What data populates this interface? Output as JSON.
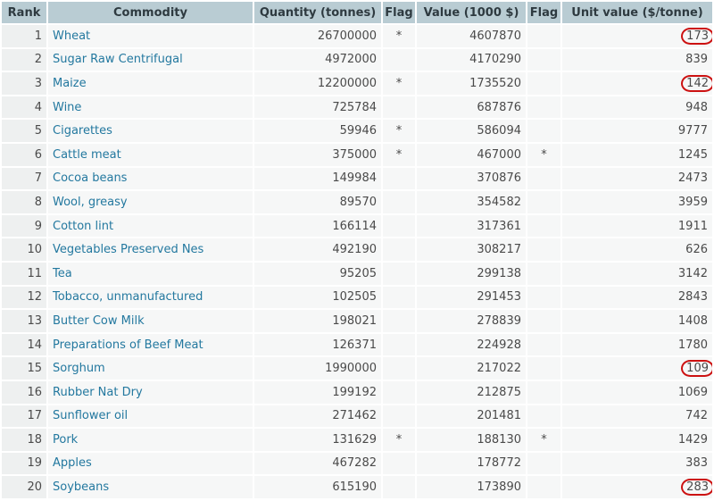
{
  "colors": {
    "page_bg": "#ffffff",
    "header_bg": "#b9ccd3",
    "header_text": "#2e3a40",
    "cell_bg": "#f6f7f7",
    "rank_cell_bg": "#eef0f0",
    "number_text": "#4a4a4a",
    "link_color": "#23789f",
    "annotation_red": "#cc1111"
  },
  "table": {
    "columns": [
      {
        "label": "Rank"
      },
      {
        "label": "Commodity"
      },
      {
        "label": "Quantity (tonnes)"
      },
      {
        "label": "Flag"
      },
      {
        "label": "Value (1000 $)"
      },
      {
        "label": "Flag"
      },
      {
        "label": "Unit value ($/tonne)"
      }
    ],
    "rows": [
      {
        "rank": "1",
        "commodity": "Wheat",
        "quantity": "26700000",
        "flag1": "*",
        "value": "4607870",
        "flag2": "",
        "unit": "173",
        "circled": true
      },
      {
        "rank": "2",
        "commodity": "Sugar Raw Centrifugal",
        "quantity": "4972000",
        "flag1": "",
        "value": "4170290",
        "flag2": "",
        "unit": "839",
        "circled": false
      },
      {
        "rank": "3",
        "commodity": "Maize",
        "quantity": "12200000",
        "flag1": "*",
        "value": "1735520",
        "flag2": "",
        "unit": "142",
        "circled": true
      },
      {
        "rank": "4",
        "commodity": "Wine",
        "quantity": "725784",
        "flag1": "",
        "value": "687876",
        "flag2": "",
        "unit": "948",
        "circled": false
      },
      {
        "rank": "5",
        "commodity": "Cigarettes",
        "quantity": "59946",
        "flag1": "*",
        "value": "586094",
        "flag2": "",
        "unit": "9777",
        "circled": false
      },
      {
        "rank": "6",
        "commodity": "Cattle meat",
        "quantity": "375000",
        "flag1": "*",
        "value": "467000",
        "flag2": "*",
        "unit": "1245",
        "circled": false
      },
      {
        "rank": "7",
        "commodity": "Cocoa beans",
        "quantity": "149984",
        "flag1": "",
        "value": "370876",
        "flag2": "",
        "unit": "2473",
        "circled": false
      },
      {
        "rank": "8",
        "commodity": "Wool, greasy",
        "quantity": "89570",
        "flag1": "",
        "value": "354582",
        "flag2": "",
        "unit": "3959",
        "circled": false
      },
      {
        "rank": "9",
        "commodity": "Cotton lint",
        "quantity": "166114",
        "flag1": "",
        "value": "317361",
        "flag2": "",
        "unit": "1911",
        "circled": false
      },
      {
        "rank": "10",
        "commodity": "Vegetables Preserved Nes",
        "quantity": "492190",
        "flag1": "",
        "value": "308217",
        "flag2": "",
        "unit": "626",
        "circled": false
      },
      {
        "rank": "11",
        "commodity": "Tea",
        "quantity": "95205",
        "flag1": "",
        "value": "299138",
        "flag2": "",
        "unit": "3142",
        "circled": false
      },
      {
        "rank": "12",
        "commodity": "Tobacco, unmanufactured",
        "quantity": "102505",
        "flag1": "",
        "value": "291453",
        "flag2": "",
        "unit": "2843",
        "circled": false
      },
      {
        "rank": "13",
        "commodity": "Butter Cow Milk",
        "quantity": "198021",
        "flag1": "",
        "value": "278839",
        "flag2": "",
        "unit": "1408",
        "circled": false
      },
      {
        "rank": "14",
        "commodity": "Preparations of Beef Meat",
        "quantity": "126371",
        "flag1": "",
        "value": "224928",
        "flag2": "",
        "unit": "1780",
        "circled": false
      },
      {
        "rank": "15",
        "commodity": "Sorghum",
        "quantity": "1990000",
        "flag1": "",
        "value": "217022",
        "flag2": "",
        "unit": "109",
        "circled": true
      },
      {
        "rank": "16",
        "commodity": "Rubber Nat Dry",
        "quantity": "199192",
        "flag1": "",
        "value": "212875",
        "flag2": "",
        "unit": "1069",
        "circled": false
      },
      {
        "rank": "17",
        "commodity": "Sunflower oil",
        "quantity": "271462",
        "flag1": "",
        "value": "201481",
        "flag2": "",
        "unit": "742",
        "circled": false
      },
      {
        "rank": "18",
        "commodity": "Pork",
        "quantity": "131629",
        "flag1": "*",
        "value": "188130",
        "flag2": "*",
        "unit": "1429",
        "circled": false
      },
      {
        "rank": "19",
        "commodity": "Apples",
        "quantity": "467282",
        "flag1": "",
        "value": "178772",
        "flag2": "",
        "unit": "383",
        "circled": false
      },
      {
        "rank": "20",
        "commodity": "Soybeans",
        "quantity": "615190",
        "flag1": "",
        "value": "173890",
        "flag2": "",
        "unit": "283",
        "circled": true
      }
    ]
  }
}
